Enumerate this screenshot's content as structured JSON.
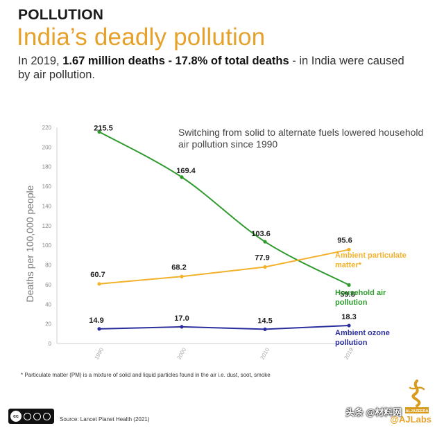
{
  "header": {
    "kicker": "POLLUTION",
    "headline": "India’s deadly pollution",
    "subtitle_prefix": "In 2019, ",
    "subtitle_bold": "1.67 million deaths - 17.8% of total deaths",
    "subtitle_suffix": " - in India were caused by air pollution."
  },
  "chart_data": {
    "type": "line",
    "categories": [
      "1990",
      "2000",
      "2010",
      "2019"
    ],
    "ylabel": "Deaths per 100,000 people",
    "ylim": [
      0,
      220
    ],
    "yticks": [
      0,
      20,
      40,
      60,
      80,
      100,
      120,
      140,
      160,
      180,
      200,
      220
    ],
    "annotation": "Switching from solid to alternate fuels lowered household air pollution since 1990",
    "series": [
      {
        "name": "Household air pollution",
        "label_lines": [
          "Household air",
          "pollution"
        ],
        "color": "#2e9a2e",
        "curve": "smooth",
        "values": [
          215.5,
          169.4,
          103.6,
          59.6
        ],
        "labels": [
          "215.5",
          "169.4",
          "103.6",
          "59.6"
        ]
      },
      {
        "name": "Ambient particulate matter*",
        "label_lines": [
          "Ambient particulate",
          "matter*"
        ],
        "color": "#f2b129",
        "curve": "linear",
        "values": [
          60.7,
          68.2,
          77.9,
          95.6
        ],
        "labels": [
          "60.7",
          "68.2",
          "77.9",
          "95.6"
        ]
      },
      {
        "name": "Ambient ozone pollution",
        "label_lines": [
          "Ambient ozone",
          "pollution"
        ],
        "color": "#2b2f9e",
        "curve": "linear",
        "values": [
          14.9,
          17.0,
          14.5,
          18.3
        ],
        "labels": [
          "14.9",
          "17.0",
          "14.5",
          "18.3"
        ]
      }
    ]
  },
  "footer": {
    "footnote": "* Particulate matter (PM) is a mixture of solid and liquid particles found in the air i.e. dust, soot, smoke",
    "source": "Source: Lancet Planet Health (2021)",
    "brand": "@AJLabs",
    "license": "cc",
    "logo_text": "ALJAZEERA",
    "watermark": "头条 @材料网"
  }
}
